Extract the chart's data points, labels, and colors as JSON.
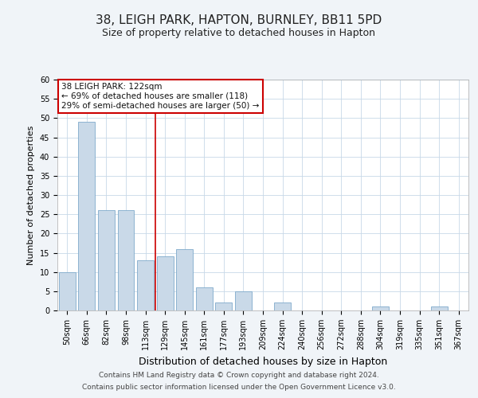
{
  "title": "38, LEIGH PARK, HAPTON, BURNLEY, BB11 5PD",
  "subtitle": "Size of property relative to detached houses in Hapton",
  "xlabel": "Distribution of detached houses by size in Hapton",
  "ylabel": "Number of detached properties",
  "categories": [
    "50sqm",
    "66sqm",
    "82sqm",
    "98sqm",
    "113sqm",
    "129sqm",
    "145sqm",
    "161sqm",
    "177sqm",
    "193sqm",
    "209sqm",
    "224sqm",
    "240sqm",
    "256sqm",
    "272sqm",
    "288sqm",
    "304sqm",
    "319sqm",
    "335sqm",
    "351sqm",
    "367sqm"
  ],
  "values": [
    10,
    49,
    26,
    26,
    13,
    14,
    16,
    6,
    2,
    5,
    0,
    2,
    0,
    0,
    0,
    0,
    1,
    0,
    0,
    1,
    0
  ],
  "bar_color": "#c9d9e8",
  "bar_edge_color": "#7faacb",
  "ylim": [
    0,
    60
  ],
  "yticks": [
    0,
    5,
    10,
    15,
    20,
    25,
    30,
    35,
    40,
    45,
    50,
    55,
    60
  ],
  "vline_x": 4.5,
  "vline_color": "#cc0000",
  "annotation_text": "38 LEIGH PARK: 122sqm\n← 69% of detached houses are smaller (118)\n29% of semi-detached houses are larger (50) →",
  "annotation_box_color": "#cc0000",
  "footer_line1": "Contains HM Land Registry data © Crown copyright and database right 2024.",
  "footer_line2": "Contains public sector information licensed under the Open Government Licence v3.0.",
  "background_color": "#f0f4f8",
  "plot_bg_color": "#ffffff",
  "title_fontsize": 11,
  "subtitle_fontsize": 9,
  "tick_fontsize": 7,
  "ylabel_fontsize": 8,
  "xlabel_fontsize": 9,
  "annotation_fontsize": 7.5,
  "footer_fontsize": 6.5
}
